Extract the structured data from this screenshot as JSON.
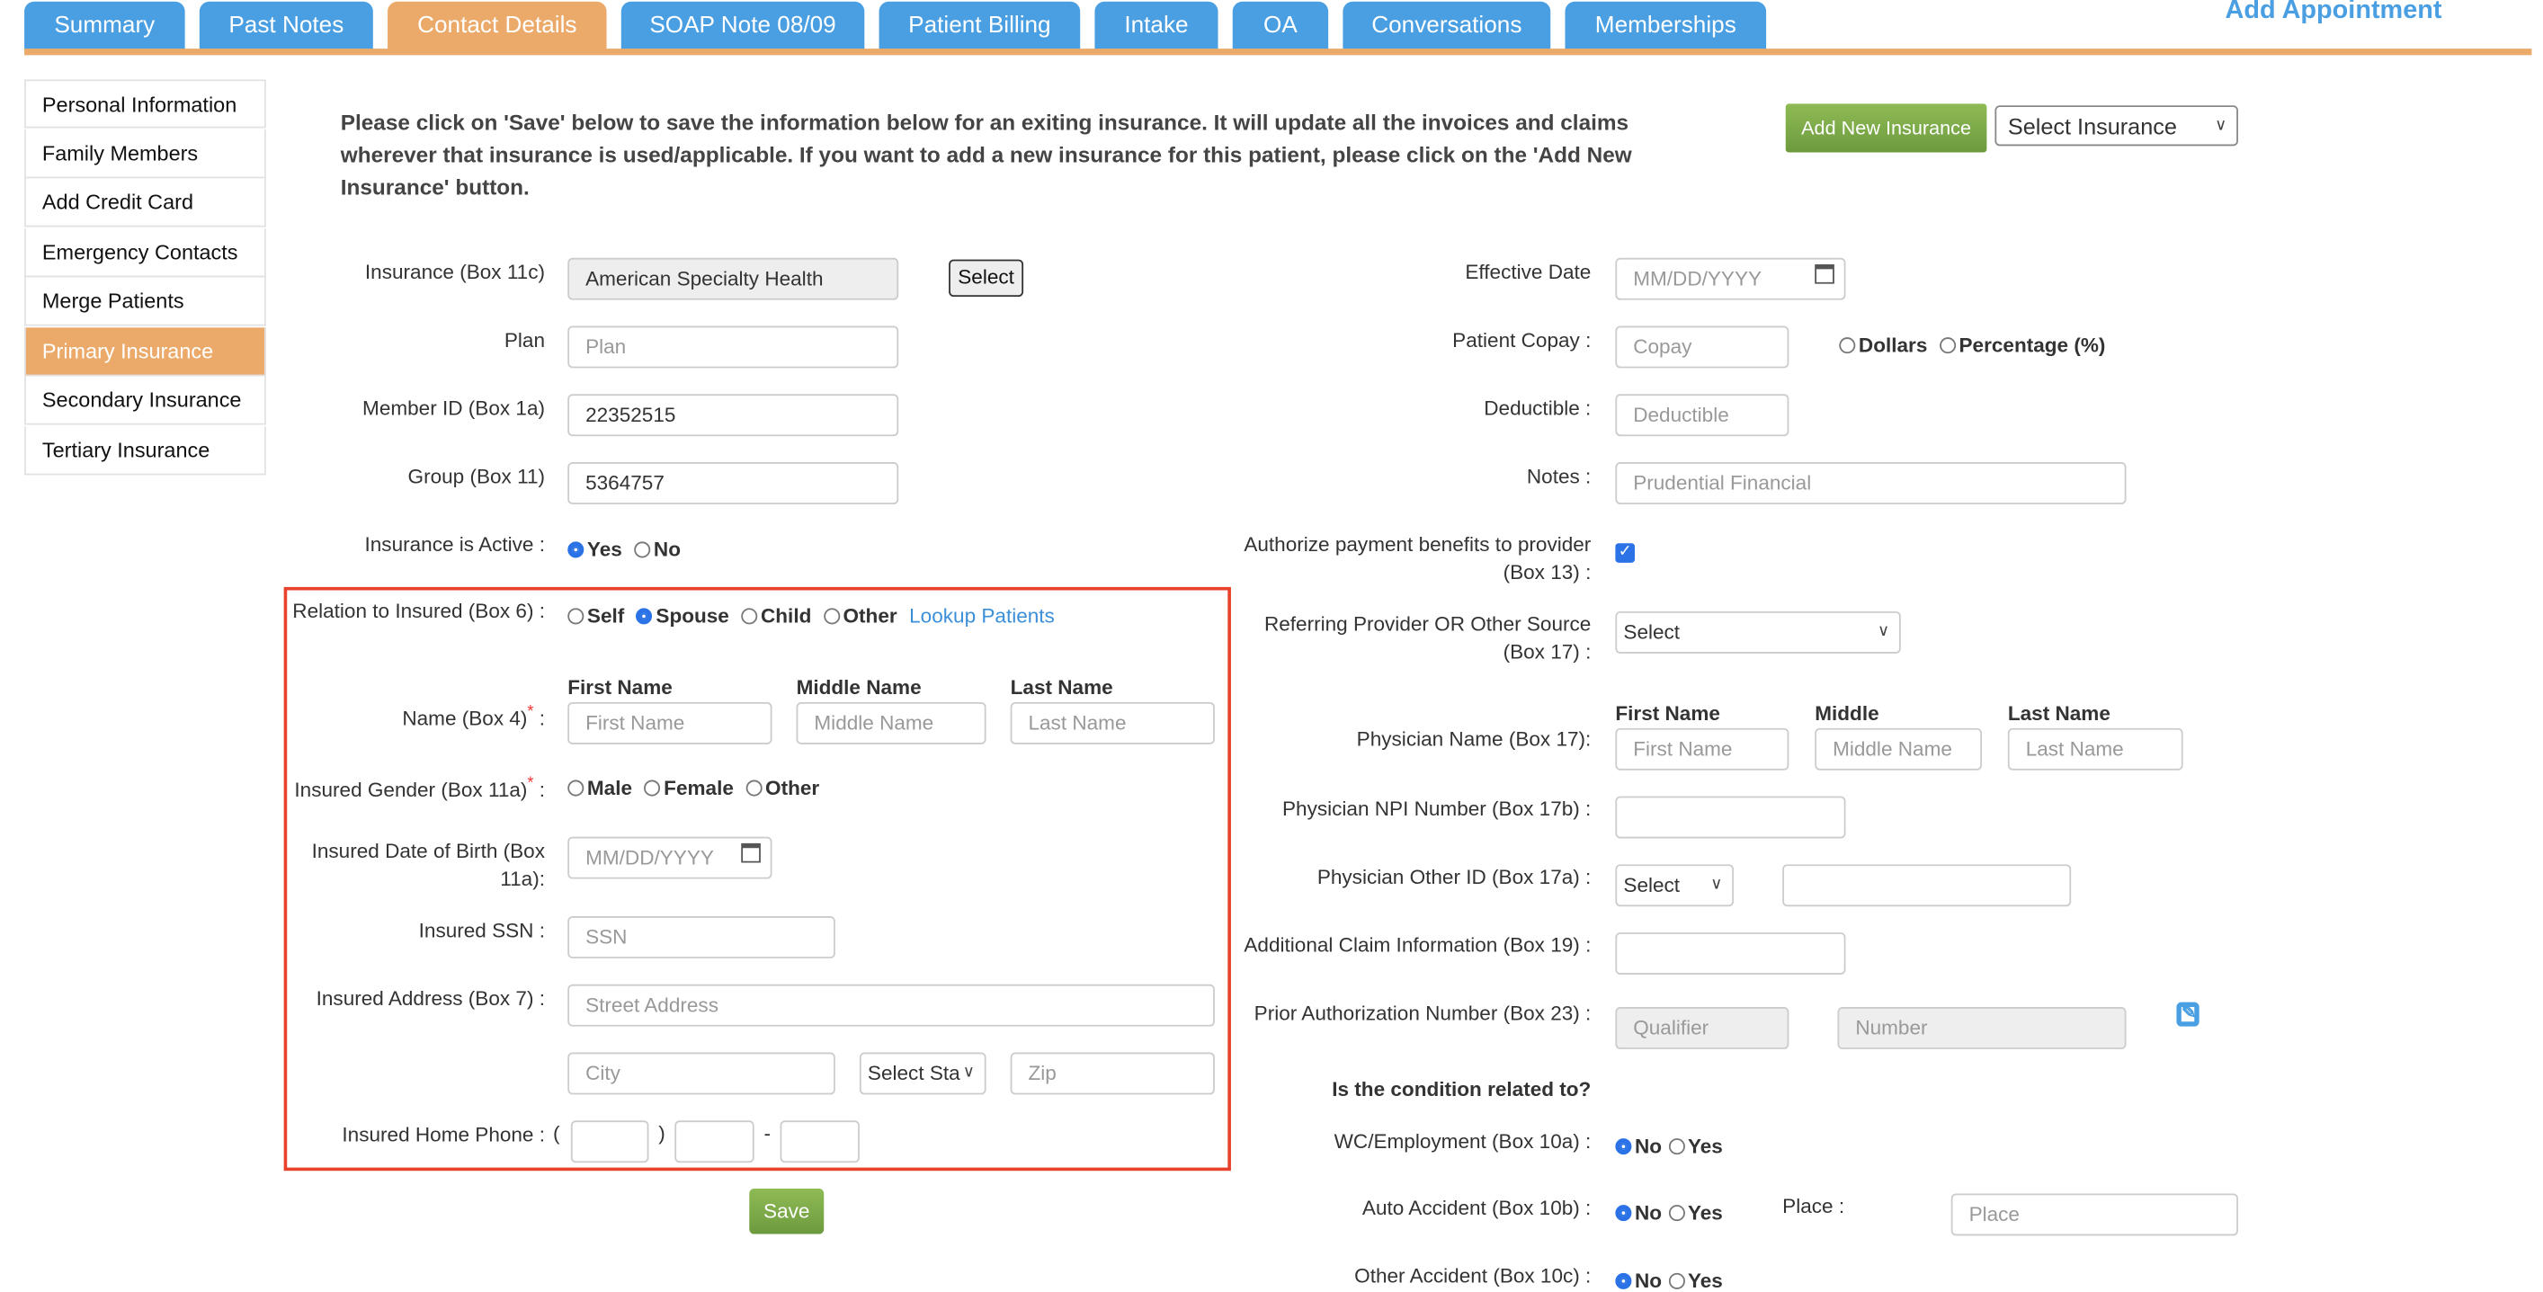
{
  "tabs": [
    {
      "label": "Summary"
    },
    {
      "label": "Past Notes"
    },
    {
      "label": "Contact Details",
      "active": true
    },
    {
      "label": "SOAP Note 08/09"
    },
    {
      "label": "Patient Billing"
    },
    {
      "label": "Intake"
    },
    {
      "label": "OA"
    },
    {
      "label": "Conversations"
    },
    {
      "label": "Memberships"
    }
  ],
  "add_appointment": "Add Appointment",
  "sidebar": {
    "items": [
      {
        "label": "Personal Information"
      },
      {
        "label": "Family Members"
      },
      {
        "label": "Add Credit Card"
      },
      {
        "label": "Emergency Contacts"
      },
      {
        "label": "Merge Patients"
      },
      {
        "label": "Primary Insurance",
        "active": true
      },
      {
        "label": "Secondary Insurance"
      },
      {
        "label": "Tertiary Insurance"
      }
    ]
  },
  "notice": "Please click on 'Save' below to save the information below for an exiting insurance. It will update all the invoices and claims wherever that insurance is used/applicable. If you want to add a new insurance for this patient, please click on the 'Add New Insurance' button.",
  "add_new_insurance": "Add New Insurance",
  "select_insurance": "Select Insurance",
  "left": {
    "insurance_label": "Insurance (Box 11c)",
    "insurance_value": "American Specialty Health",
    "select_btn": "Select",
    "plan_label": "Plan",
    "plan_ph": "Plan",
    "member_label": "Member ID (Box 1a)",
    "member_value": "22352515",
    "group_label": "Group (Box 11)",
    "group_value": "5364757",
    "active_label": "Insurance is Active :",
    "yes": "Yes",
    "no": "No",
    "active_value": "Yes",
    "relation_label": "Relation to Insured (Box 6) :",
    "relation_options": [
      "Self",
      "Spouse",
      "Child",
      "Other"
    ],
    "relation_value": "Spouse",
    "lookup": "Lookup Patients",
    "first_name_h": "First Name",
    "middle_name_h": "Middle Name",
    "last_name_h": "Last Name",
    "name_label": "Name (Box 4)",
    "first_ph": "First Name",
    "middle_ph": "Middle Name",
    "last_ph": "Last Name",
    "gender_label": "Insured Gender (Box 11a)",
    "gender_options": [
      "Male",
      "Female",
      "Other"
    ],
    "dob_label": "Insured Date of Birth (Box 11a):",
    "dob_ph": "MM/DD/YYYY",
    "ssn_label": "Insured SSN :",
    "ssn_ph": "SSN",
    "address_label": "Insured Address (Box 7) :",
    "street_ph": "Street Address",
    "city_ph": "City",
    "state_ph": "Select Sta",
    "zip_ph": "Zip",
    "phone_label": "Insured Home Phone :",
    "save": "Save"
  },
  "right": {
    "eff_label": "Effective Date",
    "eff_ph": "MM/DD/YYYY",
    "copay_label": "Patient Copay :",
    "copay_ph": "Copay",
    "dollars": "Dollars",
    "percentage": "Percentage (%)",
    "deduct_label": "Deductible :",
    "deduct_ph": "Deductible",
    "notes_label": "Notes :",
    "notes_value": "Prudential Financial",
    "auth_label": "Authorize payment benefits to provider (Box 13) :",
    "auth_checked": true,
    "ref_label": "Referring Provider OR Other Source (Box 17) :",
    "ref_select": "Select",
    "first_h": "First Name",
    "middle_h": "Middle",
    "last_h": "Last Name",
    "phys_label": "Physician Name (Box 17):",
    "first_ph": "First Name",
    "middle_ph": "Middle Name",
    "last_ph": "Last Name",
    "npi_label": "Physician NPI Number (Box 17b) :",
    "other_id_label": "Physician Other ID (Box 17a) :",
    "other_id_select": "Select",
    "claim_label": "Additional Claim Information (Box 19) :",
    "prior_label": "Prior Authorization Number (Box 23) :",
    "qualifier_ph": "Qualifier",
    "number_ph": "Number",
    "condition_h": "Is the condition related to?",
    "wc_label": "WC/Employment (Box 10a) :",
    "auto_label": "Auto Accident (Box 10b) :",
    "other_label": "Other Accident (Box 10c) :",
    "no": "No",
    "yes": "Yes",
    "place_label": "Place :",
    "place_ph": "Place"
  },
  "colors": {
    "tab": "#4a9fe2",
    "active": "#ebaa6a",
    "green": "#7aa84a",
    "highlight": "#e8412c"
  }
}
